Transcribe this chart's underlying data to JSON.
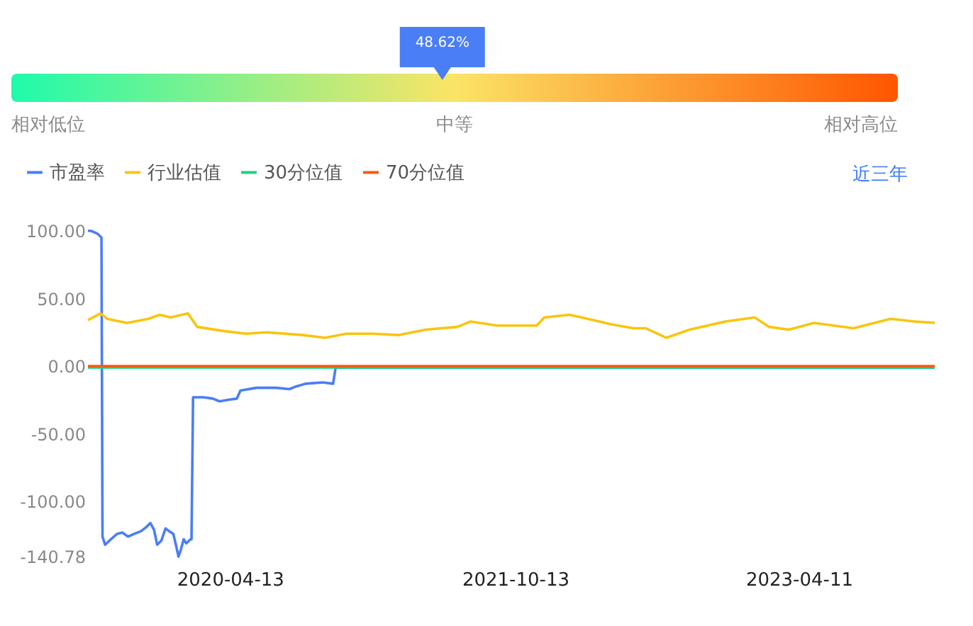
{
  "chart_data": [
    {
      "type": "other",
      "annotations": [
        "相对低位",
        "中等",
        "相对高位"
      ],
      "values": [
        48.62
      ],
      "value_labels": [
        "48.62%"
      ],
      "color": "#4a7ef6"
    },
    {
      "type": "line",
      "legend": "top left",
      "annotations": [
        "近三年"
      ],
      "xlim": [
        "2019-07-15",
        "2023-12-28"
      ],
      "xticks": [
        "2020-04-13",
        "2021-10-13",
        "2023-04-11"
      ],
      "ylim": [
        -140.78,
        100
      ],
      "yticks": [
        {
          "value": 100,
          "label": "100.00"
        },
        {
          "value": 50,
          "label": "50.00"
        },
        {
          "value": 0,
          "label": "0.00"
        },
        {
          "value": -50,
          "label": "-50.00"
        },
        {
          "value": -100,
          "label": "-100.00"
        },
        {
          "value": -140.78,
          "label": "-140.78"
        }
      ],
      "series": [
        {
          "name": "市盈率",
          "color": "#4a7ef6",
          "x": [
            "2019-07-15",
            "2019-07-21",
            "2019-08-02",
            "2019-08-10",
            "2019-08-12",
            "2019-08-17",
            "2019-08-28",
            "2019-09-09",
            "2019-09-19",
            "2019-09-30",
            "2019-10-12",
            "2019-10-25",
            "2019-11-04",
            "2019-11-12",
            "2019-11-19",
            "2019-11-25",
            "2019-12-03",
            "2019-12-11",
            "2019-12-18",
            "2019-12-26",
            "2019-12-31",
            "2020-01-05",
            "2020-01-10",
            "2020-01-15",
            "2020-01-20",
            "2020-01-28",
            "2020-01-30",
            "2020-02-02",
            "2020-02-22",
            "2020-03-11",
            "2020-03-24",
            "2020-04-08",
            "2020-04-26",
            "2020-05-03",
            "2020-06-03",
            "2020-07-11",
            "2020-08-05",
            "2020-08-18",
            "2020-09-05",
            "2020-10-08",
            "2020-10-28",
            "2020-11-02",
            "2023-12-28"
          ],
          "values": [
            100,
            100,
            98,
            95,
            -126,
            -132,
            -128,
            -124,
            -123,
            -126,
            -124,
            -122,
            -119,
            -116,
            -121,
            -132,
            -129,
            -120,
            -122,
            -124,
            -132,
            -140.78,
            -135,
            -128,
            -131,
            -128,
            -128,
            -23,
            -23,
            -24,
            -26,
            -25,
            -24,
            -18,
            -16,
            -16,
            -17,
            -15,
            -13,
            -12,
            -13,
            -1,
            -1
          ]
        },
        {
          "name": "行业估值",
          "color": "#f8c511",
          "x": [
            "2019-07-15",
            "2019-08-08",
            "2019-08-21",
            "2019-09-28",
            "2019-11-08",
            "2019-11-30",
            "2019-12-21",
            "2020-01-23",
            "2020-02-10",
            "2020-03-31",
            "2020-05-13",
            "2020-06-23",
            "2020-08-31",
            "2020-10-13",
            "2020-11-22",
            "2021-01-12",
            "2021-03-04",
            "2021-04-24",
            "2021-06-24",
            "2021-07-19",
            "2021-09-08",
            "2021-11-23",
            "2021-12-08",
            "2022-01-25",
            "2022-03-12",
            "2022-04-14",
            "2022-05-27",
            "2022-06-21",
            "2022-07-30",
            "2022-09-13",
            "2022-11-21",
            "2023-01-16",
            "2023-02-13",
            "2023-03-23",
            "2023-05-10",
            "2023-07-25",
            "2023-10-04",
            "2023-11-19",
            "2023-12-28"
          ],
          "values": [
            34,
            39,
            35,
            32,
            35,
            38,
            36,
            39,
            29,
            26,
            24,
            25,
            23,
            21,
            24,
            24,
            23,
            27,
            29,
            33,
            30,
            30,
            36,
            38,
            34,
            31,
            28,
            28,
            21,
            27,
            33,
            36,
            29,
            27,
            32,
            28,
            35,
            33,
            32
          ]
        },
        {
          "name": "30分位值",
          "color": "#19d47e",
          "x": [
            "2019-07-15",
            "2023-12-28"
          ],
          "values": [
            -1,
            -1
          ]
        },
        {
          "name": "70分位值",
          "color": "#fb5a0b",
          "x": [
            "2019-07-15",
            "2023-12-28"
          ],
          "values": [
            0,
            0
          ]
        }
      ]
    }
  ]
}
